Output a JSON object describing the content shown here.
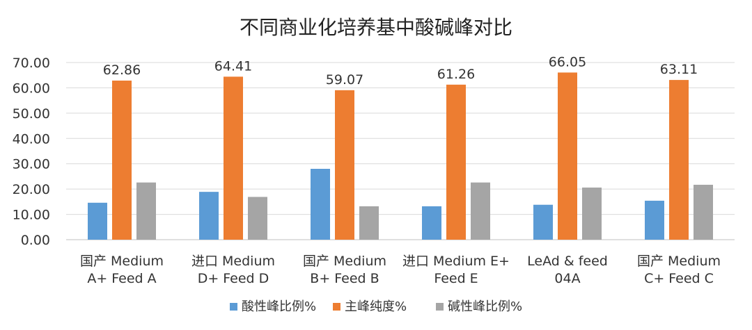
{
  "chart_data": {
    "type": "bar",
    "title": "不同商业化培养基中酸碱峰对比",
    "xlabel": "",
    "ylabel": "",
    "ylim": [
      0,
      70
    ],
    "yticks": [
      "0.00",
      "10.00",
      "20.00",
      "30.00",
      "40.00",
      "50.00",
      "60.00",
      "70.00"
    ],
    "grid": true,
    "legend_position": "bottom",
    "categories": [
      [
        "国产 Medium",
        "A+ Feed A"
      ],
      [
        "进口 Medium",
        "D+ Feed D"
      ],
      [
        "国产 Medium",
        "B+ Feed B"
      ],
      [
        "进口 Medium E+",
        "Feed E"
      ],
      [
        "LeAd & feed",
        "04A"
      ],
      [
        "国产 Medium",
        "C+ Feed C"
      ]
    ],
    "series": [
      {
        "name": "酸性峰比例%",
        "color": "#5b9bd5",
        "values": [
          14.6,
          18.9,
          28.0,
          13.2,
          13.8,
          15.4
        ]
      },
      {
        "name": "主峰纯度%",
        "color": "#ed7d31",
        "values": [
          62.86,
          64.41,
          59.07,
          61.26,
          66.05,
          63.11
        ],
        "labels": [
          "62.86",
          "64.41",
          "59.07",
          "61.26",
          "66.05",
          "63.11"
        ]
      },
      {
        "name": "碱性峰比例%",
        "color": "#a5a5a5",
        "values": [
          22.6,
          16.9,
          13.2,
          22.6,
          20.6,
          21.7
        ]
      }
    ]
  }
}
